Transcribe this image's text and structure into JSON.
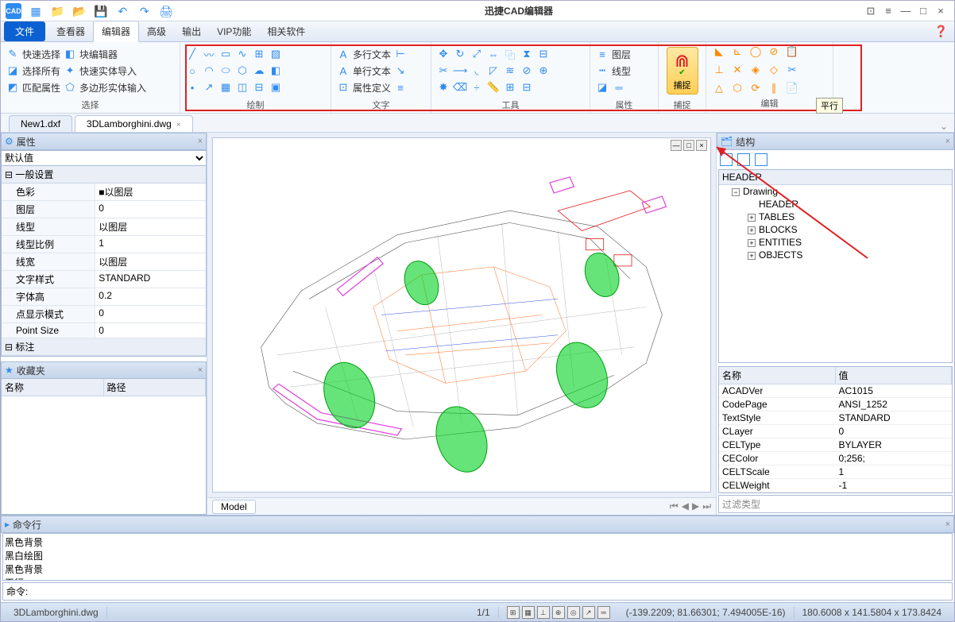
{
  "app": {
    "title": "迅捷CAD编辑器",
    "logo": "CAD"
  },
  "qat": [
    "▦",
    "📁",
    "📂",
    "💾",
    "↶",
    "↷",
    "🖨"
  ],
  "win_icons": [
    "⊡",
    "≡",
    "—",
    "□",
    "×"
  ],
  "menu": {
    "file": "文件",
    "items": [
      "查看器",
      "编辑器",
      "高级",
      "输出",
      "VIP功能",
      "相关软件"
    ],
    "active": 1
  },
  "ribbon": {
    "grp1": {
      "label": "选择",
      "items": [
        [
          "快速选择",
          "块编辑器"
        ],
        [
          "选择所有",
          "快速实体导入"
        ],
        [
          "匹配属性",
          "多边形实体输入"
        ]
      ]
    },
    "grp2": {
      "label": "绘制"
    },
    "grp3": {
      "label": "文字",
      "items": [
        "多行文本",
        "单行文本",
        "属性定义"
      ]
    },
    "grp4": {
      "label": "工具"
    },
    "grp5": {
      "label": "属性",
      "items": [
        "图层",
        "线型"
      ]
    },
    "grp6": {
      "label": "捕捉",
      "btn": "捕捉"
    },
    "grp7": {
      "label": "编辑"
    },
    "tooltip": "平行"
  },
  "tabs": [
    {
      "name": "New1.dxf",
      "active": false
    },
    {
      "name": "3DLamborghini.dwg",
      "active": true
    }
  ],
  "props": {
    "title": "属性",
    "default": "默认值",
    "section1": "一般设置",
    "section2": "标注",
    "rows": [
      {
        "k": "色彩",
        "v": "■以图层"
      },
      {
        "k": "图层",
        "v": "0"
      },
      {
        "k": "线型",
        "v": "以图层"
      },
      {
        "k": "线型比例",
        "v": "1"
      },
      {
        "k": "线宽",
        "v": "以图层"
      },
      {
        "k": "文字样式",
        "v": "STANDARD"
      },
      {
        "k": "字体高",
        "v": "0.2"
      },
      {
        "k": "点显示模式",
        "v": "0"
      },
      {
        "k": "Point Size",
        "v": "0"
      }
    ]
  },
  "fav": {
    "title": "收藏夹",
    "cols": [
      "名称",
      "路径"
    ]
  },
  "struct": {
    "title": "结构",
    "header": "HEADER",
    "root": "Drawing",
    "children": [
      "HEADER",
      "TABLES",
      "BLOCKS",
      "ENTITIES",
      "OBJECTS"
    ]
  },
  "kv": {
    "cols": [
      "名称",
      "值"
    ],
    "rows": [
      [
        "ACADVer",
        "AC1015"
      ],
      [
        "CodePage",
        "ANSI_1252"
      ],
      [
        "TextStyle",
        "STANDARD"
      ],
      [
        "CLayer",
        "0"
      ],
      [
        "CELType",
        "BYLAYER"
      ],
      [
        "CEColor",
        "0;256;"
      ],
      [
        "CELTScale",
        "1"
      ],
      [
        "CELWeight",
        "-1"
      ]
    ],
    "filter": "过滤类型"
  },
  "model_tab": "Model",
  "cmd": {
    "title": "命令行",
    "history": [
      "黑色背景",
      "黑白绘图",
      "黑色背景",
      "平行"
    ],
    "label": "命令: "
  },
  "status": {
    "file": "3DLamborghini.dwg",
    "page": "1/1",
    "coords": "(-139.2209; 81.66301; 7.494005E-16)",
    "dims": "180.6008 x 141.5804 x 173.8424"
  },
  "colors": {
    "body": "#555555",
    "magenta": "#e040e0",
    "green": "#00d020",
    "orange": "#ff7020",
    "red": "#e02020",
    "blue": "#3050e0",
    "highlight": "#e02020"
  }
}
